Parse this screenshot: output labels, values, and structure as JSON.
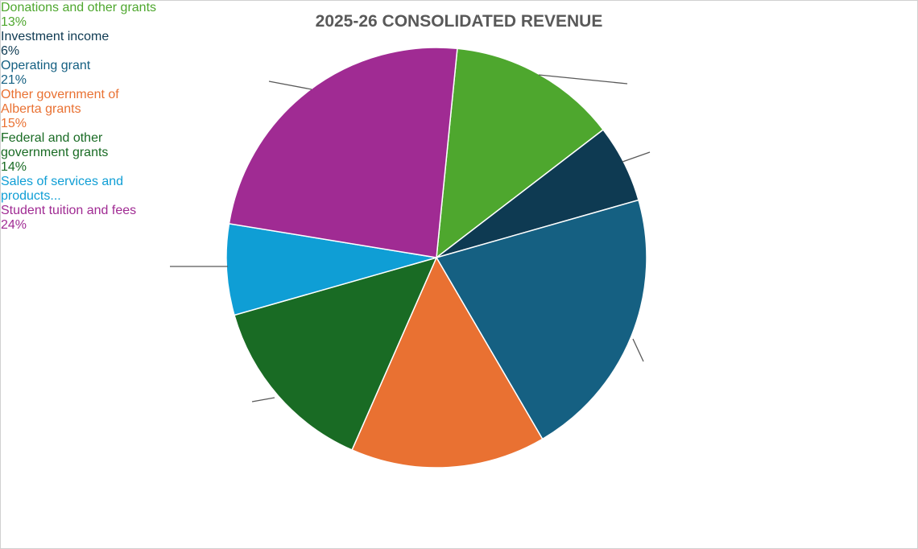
{
  "chart_data": {
    "type": "pie",
    "title": "2025-26 CONSOLIDATED REVENUE",
    "categories": [
      "Donations and other grants",
      "Investment income",
      "Operating grant",
      "Other government of Alberta grants",
      "Federal and other government grants",
      "Sales of services and products...",
      "Student tuition and fees"
    ],
    "values": [
      13,
      6,
      21,
      15,
      14,
      7,
      24
    ],
    "value_labels": [
      "13%",
      "6%",
      "21%",
      "15%",
      "14%",
      null,
      "24%"
    ],
    "colors": [
      "#4ea72e",
      "#0e3a52",
      "#156082",
      "#e97132",
      "#196b24",
      "#0f9ed5",
      "#a02b93"
    ]
  }
}
